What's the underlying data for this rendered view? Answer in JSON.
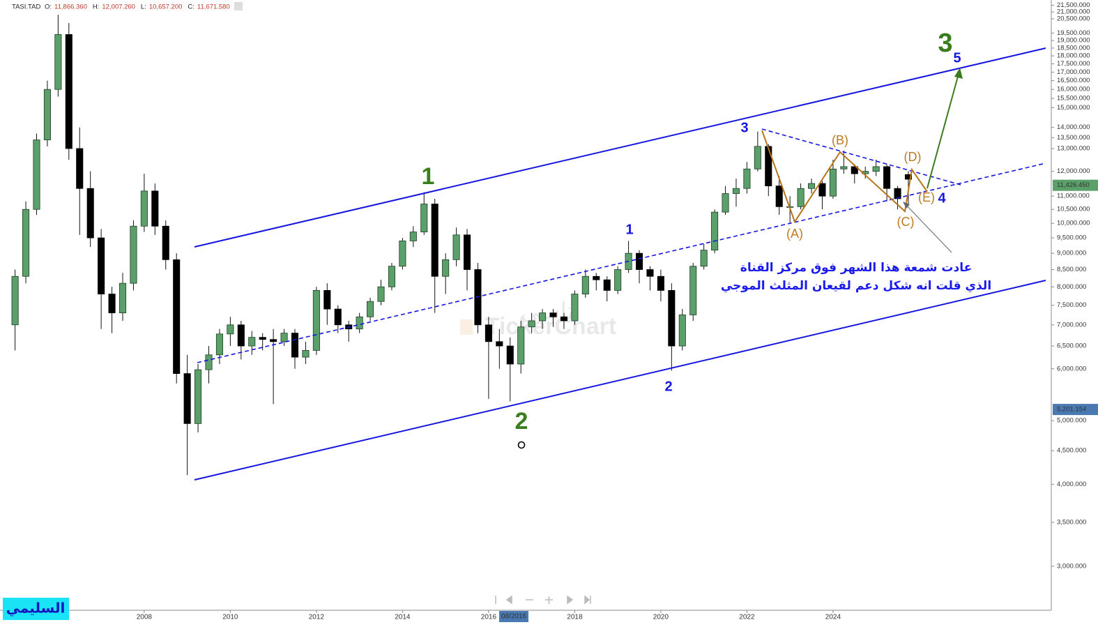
{
  "chart_data": {
    "type": "candlestick",
    "symbol": "TASI.TAD",
    "header": [
      {
        "key": "O:",
        "value": "11,866.360"
      },
      {
        "key": "H:",
        "value": "12,007.260"
      },
      {
        "key": "L:",
        "value": "10,657.200"
      },
      {
        "key": "C:",
        "value": "11,671.580"
      }
    ],
    "log_scale": true,
    "up_color": "#5b9f6b",
    "down_color": "#000000",
    "x": [
      2005,
      2005.25,
      2005.5,
      2005.75,
      2006,
      2006.25,
      2006.5,
      2006.75,
      2007,
      2007.25,
      2007.5,
      2007.75,
      2008,
      2008.25,
      2008.5,
      2008.75,
      2009,
      2009.25,
      2009.5,
      2009.75,
      2010,
      2010.25,
      2010.5,
      2010.75,
      2011,
      2011.25,
      2011.5,
      2011.75,
      2012,
      2012.25,
      2012.5,
      2012.75,
      2013,
      2013.25,
      2013.5,
      2013.75,
      2014,
      2014.25,
      2014.5,
      2014.75,
      2015,
      2015.25,
      2015.5,
      2015.75,
      2016,
      2016.25,
      2016.5,
      2016.75,
      2017,
      2017.25,
      2017.5,
      2017.75,
      2018,
      2018.25,
      2018.5,
      2018.75,
      2019,
      2019.25,
      2019.5,
      2019.75,
      2020,
      2020.25,
      2020.5,
      2020.75,
      2021,
      2021.25,
      2021.5,
      2021.75,
      2022,
      2022.25,
      2022.5,
      2022.75,
      2023,
      2023.25,
      2023.5,
      2023.75,
      2024,
      2024.25,
      2024.5,
      2024.75,
      2025,
      2025.25,
      2025.5,
      2025.75
    ],
    "open": [
      7000,
      8300,
      10500,
      13400,
      16000,
      19400,
      13000,
      11300,
      9500,
      7800,
      7300,
      8100,
      9900,
      11200,
      9900,
      8800,
      5900,
      4950,
      5980,
      6300,
      6780,
      7000,
      6500,
      6700,
      6650,
      6600,
      6800,
      6250,
      6400,
      7900,
      7400,
      7000,
      6900,
      7200,
      7600,
      8000,
      8600,
      9400,
      9700,
      10700,
      8300,
      8800,
      9600,
      8500,
      7000,
      6600,
      6500,
      6100,
      6950,
      7100,
      7300,
      7200,
      7100,
      7800,
      8300,
      8200,
      7900,
      8500,
      9000,
      8500,
      8300,
      7900,
      6500,
      7250,
      8600,
      9100,
      10400,
      11100,
      11300,
      12100,
      13100,
      11400,
      10600,
      10600,
      11300,
      11500,
      11000,
      12100,
      12200,
      11900,
      12000,
      12200,
      11300,
      11866.36
    ],
    "high": [
      8500,
      10800,
      13700,
      16500,
      20800,
      20200,
      14000,
      12000,
      9800,
      8000,
      8400,
      10100,
      11900,
      11500,
      10100,
      9000,
      6300,
      6100,
      6500,
      6900,
      7200,
      7100,
      6850,
      6800,
      6900,
      6900,
      6900,
      6600,
      8000,
      8100,
      7500,
      7100,
      7300,
      7700,
      8200,
      8700,
      9500,
      9900,
      11150,
      10900,
      9000,
      9850,
      9800,
      8700,
      7200,
      6900,
      6700,
      7100,
      7300,
      7400,
      7400,
      7300,
      7900,
      8500,
      8400,
      8300,
      8600,
      9400,
      9100,
      8600,
      8500,
      8100,
      7400,
      8700,
      9300,
      10500,
      11400,
      11700,
      12400,
      13800,
      13200,
      11800,
      11000,
      11500,
      11700,
      11600,
      12500,
      12900,
      12300,
      12200,
      12500,
      12300,
      11400,
      12007.26
    ],
    "low": [
      6400,
      8100,
      10300,
      13100,
      15600,
      12500,
      9600,
      9200,
      6900,
      6800,
      7100,
      7900,
      9700,
      9600,
      8500,
      5700,
      4130,
      4800,
      5700,
      6100,
      6500,
      6200,
      6300,
      6400,
      5300,
      6500,
      6000,
      6100,
      6300,
      7000,
      6800,
      6600,
      6800,
      7100,
      7500,
      7900,
      8500,
      9200,
      9600,
      7300,
      7800,
      8600,
      7900,
      6800,
      5400,
      6000,
      5350,
      5900,
      6800,
      6900,
      6950,
      6900,
      7000,
      7700,
      7900,
      7600,
      7800,
      8400,
      8100,
      7900,
      7600,
      5960,
      6400,
      7100,
      8500,
      9000,
      10300,
      10600,
      11100,
      12000,
      11000,
      10300,
      10000,
      10500,
      11100,
      10500,
      10900,
      11900,
      11500,
      11700,
      11800,
      10800,
      10500,
      10657.2
    ],
    "close": [
      8300,
      10500,
      13400,
      16000,
      19400,
      13000,
      11300,
      9500,
      7800,
      7300,
      8100,
      9900,
      11200,
      9900,
      8800,
      5900,
      4950,
      5980,
      6300,
      6780,
      7000,
      6500,
      6700,
      6650,
      6600,
      6800,
      6250,
      6400,
      7900,
      7400,
      7000,
      6900,
      7200,
      7600,
      8000,
      8600,
      9400,
      9700,
      10700,
      8300,
      8800,
      9600,
      8500,
      7000,
      6600,
      6500,
      6100,
      6950,
      7100,
      7300,
      7200,
      7100,
      7800,
      8300,
      8200,
      7900,
      8500,
      9000,
      8500,
      8300,
      7900,
      6500,
      7250,
      8600,
      9100,
      10400,
      11100,
      11300,
      12100,
      13100,
      11400,
      10600,
      10600,
      11300,
      11500,
      11000,
      12100,
      12200,
      11900,
      12000,
      12200,
      11300,
      10900,
      11671.58
    ],
    "xlim": [
      2004.65,
      2029.07
    ],
    "xticks": [
      2008,
      2010,
      2012,
      2014,
      2016,
      2018,
      2020,
      2022,
      2024
    ],
    "ylim": [
      2570,
      21900
    ],
    "yticks": [
      {
        "value": 21500,
        "label": "21,500.000"
      },
      {
        "value": 21000,
        "label": "21,000.000"
      },
      {
        "value": 20500,
        "label": "20,500.000"
      },
      {
        "value": 19500,
        "label": "19,500.000"
      },
      {
        "value": 19000,
        "label": "19,000.000"
      },
      {
        "value": 18500,
        "label": "18,500.000"
      },
      {
        "value": 18000,
        "label": "18,000.000"
      },
      {
        "value": 17500,
        "label": "17,500.000"
      },
      {
        "value": 17000,
        "label": "17,000.000"
      },
      {
        "value": 16500,
        "label": "16,500.000"
      },
      {
        "value": 16000,
        "label": "16,000.000"
      },
      {
        "value": 15500,
        "label": "15,500.000"
      },
      {
        "value": 15000,
        "label": "15,000.000"
      },
      {
        "value": 14000,
        "label": "14,000.000"
      },
      {
        "value": 13500,
        "label": "13,500.000"
      },
      {
        "value": 13000,
        "label": "13,000.000"
      },
      {
        "value": 12000,
        "label": "12,000.000"
      },
      {
        "value": 11000,
        "label": "11,000.000"
      },
      {
        "value": 10500,
        "label": "10,500.000"
      },
      {
        "value": 10000,
        "label": "10,000.000"
      },
      {
        "value": 9500,
        "label": "9,500.000"
      },
      {
        "value": 9000,
        "label": "9,000.000"
      },
      {
        "value": 8500,
        "label": "8,500.000"
      },
      {
        "value": 8000,
        "label": "8,000.000"
      },
      {
        "value": 7500,
        "label": "7,500.000"
      },
      {
        "value": 7000,
        "label": "7,000.000"
      },
      {
        "value": 6500,
        "label": "6,500.000"
      },
      {
        "value": 6000,
        "label": "6,000.000"
      },
      {
        "value": 5000,
        "label": "5,000.000"
      },
      {
        "value": 4500,
        "label": "4,500.000"
      },
      {
        "value": 4000,
        "label": "4,000.000"
      },
      {
        "value": 3500,
        "label": "3,500.000"
      },
      {
        "value": 3000,
        "label": "3,000.000"
      }
    ],
    "price_tags": [
      {
        "value": 11426.45,
        "label": "11,426.450",
        "color": "#5b9f6b"
      },
      {
        "value": 5201.154,
        "label": "5,201.154",
        "color": "#4a78b0"
      }
    ],
    "crosshair_label": "08/2016",
    "wave_labels": [
      "1",
      "2",
      "3",
      "1",
      "2",
      "3",
      "4",
      "5",
      "(A)",
      "(B)",
      "(C)",
      "(D)",
      "(E)"
    ],
    "note": [
      "عادت شمعة هذا الشهر فوق مركز القناة",
      "الذي قلت انه شكل دعم لقيعان المثلث الموجي"
    ],
    "watermark": [
      "تاسي",
      "TickerChart"
    ],
    "author": "السليمي"
  }
}
